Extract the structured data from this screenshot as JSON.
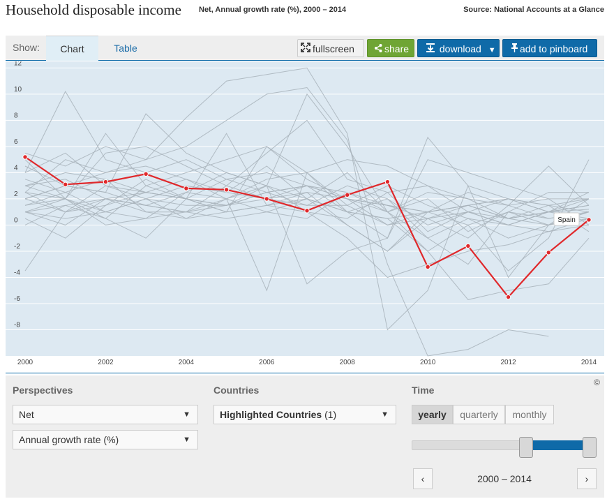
{
  "header": {
    "title": "Household disposable income",
    "subtitle": "Net, Annual growth rate (%), 2000 – 2014",
    "source": "Source: National Accounts at a Glance"
  },
  "toolbar": {
    "show_label": "Show:",
    "tab_chart": "Chart",
    "tab_table": "Table",
    "fullscreen_label": "fullscreen",
    "share_label": "share",
    "download_label": "download",
    "pin_label": "add to pinboard"
  },
  "controls": {
    "perspectives_title": "Perspectives",
    "perspective_1": "Net",
    "perspective_2": "Annual growth rate (%)",
    "countries_title": "Countries",
    "countries_select": "Highlighted Countries",
    "countries_count": "(1)",
    "time_title": "Time",
    "time_options": [
      "yearly",
      "quarterly",
      "monthly"
    ],
    "time_selected": "yearly",
    "range_label": "2000 – 2014",
    "copyright": "©"
  },
  "colors": {
    "highlight": "#e0282b",
    "background_lines": "#a8b3bb",
    "plot_bg": "#dde9f2",
    "accent": "#0f6aa8",
    "share": "#6fa534"
  },
  "chart_data": {
    "type": "line",
    "title": "",
    "xlabel": "",
    "ylabel": "",
    "x": [
      2000,
      2001,
      2002,
      2003,
      2004,
      2005,
      2006,
      2007,
      2008,
      2009,
      2010,
      2011,
      2012,
      2013,
      2014
    ],
    "xlim": [
      2000,
      2014
    ],
    "ylim": [
      -10,
      12.5
    ],
    "y_ticks": [
      12,
      10,
      8,
      6,
      4,
      2,
      0,
      -2,
      -4,
      -6,
      -8
    ],
    "x_ticks": [
      2000,
      2002,
      2004,
      2006,
      2008,
      2010,
      2012,
      2014
    ],
    "grid": true,
    "highlight_series": {
      "name": "Spain",
      "values": [
        5.2,
        3.1,
        3.3,
        3.9,
        2.8,
        2.7,
        2.0,
        1.1,
        2.3,
        3.3,
        -3.2,
        -1.6,
        -5.5,
        -2.1,
        0.4
      ]
    },
    "other_series": [
      {
        "values": [
          -3.5,
          1.0,
          3.0,
          2.5,
          2.0,
          1.5,
          2.5,
          3.0,
          1.0,
          2.0,
          -1.0,
          0.5,
          0.0,
          1.0,
          1.5
        ]
      },
      {
        "values": [
          4.0,
          10.2,
          5.0,
          4.0,
          5.0,
          3.5,
          4.0,
          3.0,
          2.0,
          0.0,
          1.0,
          1.5,
          2.0,
          1.0,
          1.2
        ]
      },
      {
        "values": [
          1.0,
          2.0,
          7.0,
          3.0,
          2.0,
          7.0,
          1.5,
          2.0,
          1.0,
          -1.0,
          6.7,
          3.0,
          2.0,
          1.5,
          1.0
        ]
      },
      {
        "values": [
          2.0,
          3.0,
          2.5,
          8.5,
          5.5,
          4.0,
          3.0,
          10.0,
          6.0,
          1.0,
          -1.0,
          -3.0,
          1.0,
          0.0,
          2.0
        ]
      },
      {
        "values": [
          5.5,
          4.5,
          6.0,
          5.0,
          8.2,
          11.0,
          11.5,
          12.0,
          7.0,
          -8.0,
          -5.0,
          3.0,
          -4.0,
          0.0,
          1.0
        ]
      },
      {
        "values": [
          2.5,
          5.0,
          4.0,
          5.0,
          6.0,
          8.0,
          10.0,
          10.5,
          6.5,
          -3.0,
          -10.0,
          -9.5,
          -8.0,
          -8.5,
          null
        ]
      },
      {
        "values": [
          3.0,
          2.0,
          0.5,
          3.0,
          4.0,
          5.0,
          6.0,
          3.5,
          2.0,
          1.0,
          -2.0,
          -5.7,
          -5.0,
          -4.5,
          -1.0
        ]
      },
      {
        "values": [
          1.0,
          0.0,
          2.0,
          1.0,
          1.0,
          1.5,
          3.0,
          2.0,
          0.0,
          -2.0,
          1.0,
          0.0,
          -3.5,
          -1.0,
          5.0
        ]
      },
      {
        "values": [
          4.0,
          5.5,
          3.0,
          2.0,
          0.5,
          1.0,
          6.0,
          4.0,
          5.0,
          4.5,
          3.0,
          2.0,
          1.5,
          4.5,
          1.5
        ]
      },
      {
        "values": [
          1.5,
          2.0,
          1.0,
          0.5,
          1.0,
          2.0,
          -5.0,
          4.0,
          1.0,
          0.5,
          1.0,
          1.5,
          0.5,
          0.0,
          0.5
        ]
      },
      {
        "values": [
          3.0,
          3.5,
          2.0,
          1.5,
          2.5,
          2.0,
          3.0,
          -4.5,
          -2.0,
          -1.0,
          5.0,
          4.0,
          3.0,
          2.0,
          2.0
        ]
      },
      {
        "values": [
          0.5,
          -1.0,
          1.5,
          3.5,
          2.0,
          1.0,
          1.5,
          1.0,
          0.5,
          2.5,
          -0.5,
          1.0,
          0.0,
          1.0,
          0.5
        ]
      },
      {
        "values": [
          2.0,
          3.0,
          4.0,
          4.5,
          3.5,
          2.0,
          1.0,
          2.0,
          4.0,
          1.0,
          2.0,
          -0.5,
          1.0,
          0.5,
          1.0
        ]
      },
      {
        "values": [
          1.0,
          1.5,
          0.5,
          -1.0,
          2.0,
          3.5,
          2.5,
          3.0,
          2.0,
          1.5,
          0.5,
          -1.0,
          1.5,
          2.0,
          0.0
        ]
      },
      {
        "values": [
          2.5,
          1.0,
          2.0,
          2.5,
          2.0,
          1.0,
          1.5,
          2.5,
          0.0,
          -2.0,
          0.5,
          1.5,
          0.5,
          1.0,
          2.0
        ]
      },
      {
        "values": [
          3.5,
          2.5,
          1.0,
          2.0,
          3.0,
          2.5,
          2.0,
          1.5,
          3.0,
          2.0,
          0.0,
          1.0,
          2.0,
          1.0,
          1.5
        ]
      },
      {
        "values": [
          1.5,
          2.5,
          3.5,
          1.0,
          0.5,
          2.0,
          3.5,
          4.0,
          1.5,
          3.0,
          1.5,
          0.5,
          -1.0,
          0.0,
          1.0
        ]
      },
      {
        "values": [
          0.0,
          1.5,
          2.0,
          1.5,
          1.0,
          0.5,
          1.0,
          0.5,
          2.5,
          1.0,
          2.5,
          2.0,
          0.5,
          1.5,
          -0.5
        ]
      },
      {
        "values": [
          2.0,
          1.0,
          1.5,
          2.5,
          3.5,
          2.5,
          4.5,
          2.0,
          1.0,
          0.5,
          -2.0,
          0.0,
          1.0,
          2.5,
          2.5
        ]
      },
      {
        "values": [
          4.5,
          3.0,
          2.5,
          1.5,
          1.0,
          3.0,
          2.0,
          3.0,
          2.5,
          1.5,
          1.0,
          2.5,
          1.5,
          0.5,
          1.0
        ]
      },
      {
        "values": [
          1.0,
          0.5,
          1.0,
          2.0,
          1.5,
          1.5,
          2.5,
          1.5,
          1.5,
          0.0,
          0.5,
          1.0,
          0.0,
          -0.5,
          0.5
        ]
      },
      {
        "values": [
          3.0,
          4.0,
          3.5,
          2.5,
          2.0,
          1.5,
          2.0,
          2.5,
          2.0,
          1.5,
          1.0,
          1.5,
          2.0,
          1.5,
          2.0
        ]
      },
      {
        "values": [
          2.5,
          2.0,
          0.0,
          0.5,
          2.5,
          4.0,
          3.0,
          1.0,
          -1.0,
          -4.0,
          -3.0,
          -2.0,
          -1.5,
          -0.5,
          0.0
        ]
      },
      {
        "values": [
          5.0,
          2.0,
          5.5,
          6.0,
          4.5,
          3.0,
          5.5,
          8.0,
          3.5,
          2.5,
          3.0,
          1.0,
          0.5,
          1.0,
          2.5
        ]
      }
    ]
  }
}
